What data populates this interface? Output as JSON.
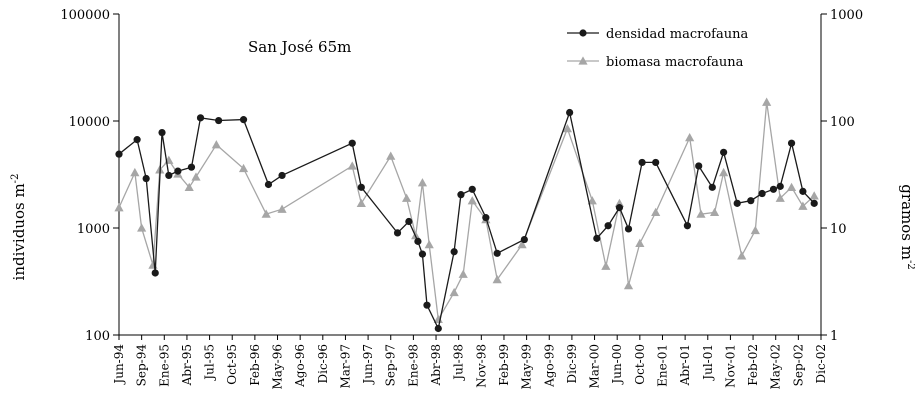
{
  "chart_data": {
    "type": "line",
    "annotation": "San José 65m",
    "y_left": {
      "label": "individuos m",
      "label_sup": "-2",
      "scale": "log",
      "range": [
        100,
        100000
      ],
      "ticks": [
        "100",
        "1000",
        "10000",
        "100000"
      ]
    },
    "y_right": {
      "label": "gramos m",
      "label_sup": "-2",
      "scale": "log",
      "range": [
        1,
        1000
      ],
      "ticks": [
        "1",
        "10",
        "100",
        "1000"
      ]
    },
    "x_ticks": [
      "Jun-94",
      "Sep-94",
      "Ene-95",
      "Abr-95",
      "Jul-95",
      "Oct-95",
      "Feb-96",
      "May-96",
      "Ago-96",
      "Dic-96",
      "Mar-97",
      "Jun-97",
      "Sep-97",
      "Ene-98",
      "Abr-98",
      "Jul-98",
      "Nov-98",
      "Feb-99",
      "May-99",
      "Ago-99",
      "Dic-99",
      "Mar-00",
      "Jun-00",
      "Oct-00",
      "Ene-01",
      "Abr-01",
      "Jul-01",
      "Nov-01",
      "Feb-02",
      "May-02",
      "Sep-02",
      "Dic-02"
    ],
    "legend_position": "top-right",
    "series": [
      {
        "name": "densidad macrofauna",
        "axis": "left",
        "color": "#1a1a1a",
        "marker": "circle",
        "points": [
          [
            0.0,
            4900
          ],
          [
            0.8,
            6700
          ],
          [
            1.2,
            2900
          ],
          [
            1.6,
            380
          ],
          [
            1.9,
            7800
          ],
          [
            2.2,
            3100
          ],
          [
            2.6,
            3400
          ],
          [
            3.2,
            3700
          ],
          [
            3.6,
            10700
          ],
          [
            4.4,
            10100
          ],
          [
            5.5,
            10300
          ],
          [
            6.6,
            2550
          ],
          [
            7.2,
            3100
          ],
          [
            10.3,
            6200
          ],
          [
            10.7,
            2400
          ],
          [
            12.3,
            900
          ],
          [
            12.8,
            1150
          ],
          [
            13.2,
            750
          ],
          [
            13.4,
            570
          ],
          [
            13.6,
            190
          ],
          [
            14.1,
            115
          ],
          [
            14.8,
            600
          ],
          [
            15.1,
            2050
          ],
          [
            15.6,
            2300
          ],
          [
            16.2,
            1250
          ],
          [
            16.7,
            580
          ],
          [
            17.9,
            780
          ],
          [
            19.9,
            12000
          ],
          [
            21.1,
            800
          ],
          [
            21.6,
            1050
          ],
          [
            22.1,
            1550
          ],
          [
            22.5,
            980
          ],
          [
            23.1,
            4100
          ],
          [
            23.7,
            4100
          ],
          [
            25.1,
            1050
          ],
          [
            25.6,
            3800
          ],
          [
            26.2,
            2400
          ],
          [
            26.7,
            5100
          ],
          [
            27.3,
            1700
          ],
          [
            27.9,
            1800
          ],
          [
            28.4,
            2100
          ],
          [
            28.9,
            2300
          ],
          [
            29.2,
            2450
          ],
          [
            29.7,
            6200
          ],
          [
            30.2,
            2200
          ],
          [
            30.7,
            1700
          ]
        ]
      },
      {
        "name": "biomasa macrofauna",
        "axis": "right",
        "color": "#a6a6a6",
        "marker": "triangle",
        "points": [
          [
            0.0,
            15.5
          ],
          [
            0.7,
            33
          ],
          [
            1.0,
            10
          ],
          [
            1.5,
            4.5
          ],
          [
            1.8,
            35
          ],
          [
            2.2,
            43
          ],
          [
            2.6,
            32
          ],
          [
            3.1,
            24
          ],
          [
            3.4,
            30
          ],
          [
            4.3,
            60
          ],
          [
            5.5,
            36
          ],
          [
            6.5,
            13.5
          ],
          [
            7.2,
            15
          ],
          [
            10.3,
            38
          ],
          [
            10.7,
            17
          ],
          [
            12.0,
            47
          ],
          [
            12.7,
            19
          ],
          [
            13.1,
            8.5
          ],
          [
            13.4,
            26.5
          ],
          [
            13.7,
            7
          ],
          [
            14.1,
            1.4
          ],
          [
            14.8,
            2.5
          ],
          [
            15.2,
            3.7
          ],
          [
            15.6,
            18
          ],
          [
            16.2,
            12
          ],
          [
            16.7,
            3.3
          ],
          [
            17.8,
            7
          ],
          [
            19.8,
            85
          ],
          [
            20.9,
            18
          ],
          [
            21.5,
            4.4
          ],
          [
            22.1,
            17
          ],
          [
            22.5,
            2.9
          ],
          [
            23.0,
            7.2
          ],
          [
            23.7,
            14
          ],
          [
            25.2,
            70
          ],
          [
            25.7,
            13.5
          ],
          [
            26.3,
            14
          ],
          [
            26.7,
            33
          ],
          [
            27.5,
            5.5
          ],
          [
            28.1,
            9.5
          ],
          [
            28.6,
            150
          ],
          [
            29.2,
            19
          ],
          [
            29.7,
            24
          ],
          [
            30.2,
            16
          ],
          [
            30.7,
            20
          ]
        ]
      }
    ]
  }
}
